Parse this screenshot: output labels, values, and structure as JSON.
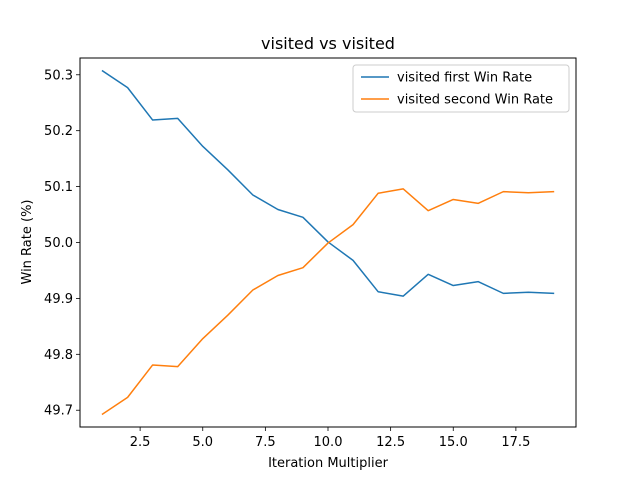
{
  "chart_data": {
    "type": "line",
    "title": "visited vs visited",
    "xlabel": "Iteration Multiplier",
    "ylabel": "Win Rate (%)",
    "xlim": [
      0.1,
      19.9
    ],
    "ylim": [
      49.67,
      50.33
    ],
    "xticks": [
      2.5,
      5.0,
      7.5,
      10.0,
      12.5,
      15.0,
      17.5
    ],
    "xtick_labels": [
      "2.5",
      "5.0",
      "7.5",
      "10.0",
      "12.5",
      "15.0",
      "17.5"
    ],
    "yticks": [
      49.7,
      49.8,
      49.9,
      50.0,
      50.1,
      50.2,
      50.3
    ],
    "ytick_labels": [
      "49.7",
      "49.8",
      "49.9",
      "50.0",
      "50.1",
      "50.2",
      "50.3"
    ],
    "grid": false,
    "legend_position": "top-right",
    "x": [
      1,
      2,
      3,
      4,
      5,
      6,
      7,
      8,
      9,
      10,
      11,
      12,
      13,
      14,
      15,
      16,
      17,
      18,
      19
    ],
    "series": [
      {
        "name": "visited first Win Rate",
        "color": "#1f77b4",
        "values": [
          50.307,
          50.277,
          50.219,
          50.222,
          50.172,
          50.13,
          50.085,
          50.059,
          50.045,
          50.001,
          49.968,
          49.912,
          49.904,
          49.943,
          49.923,
          49.93,
          49.909,
          49.911,
          49.909
        ]
      },
      {
        "name": "visited second Win Rate",
        "color": "#ff7f0e",
        "values": [
          49.693,
          49.723,
          49.781,
          49.778,
          49.828,
          49.87,
          49.915,
          49.941,
          49.955,
          49.999,
          50.032,
          50.088,
          50.096,
          50.057,
          50.077,
          50.07,
          50.091,
          50.089,
          50.091
        ]
      }
    ]
  }
}
